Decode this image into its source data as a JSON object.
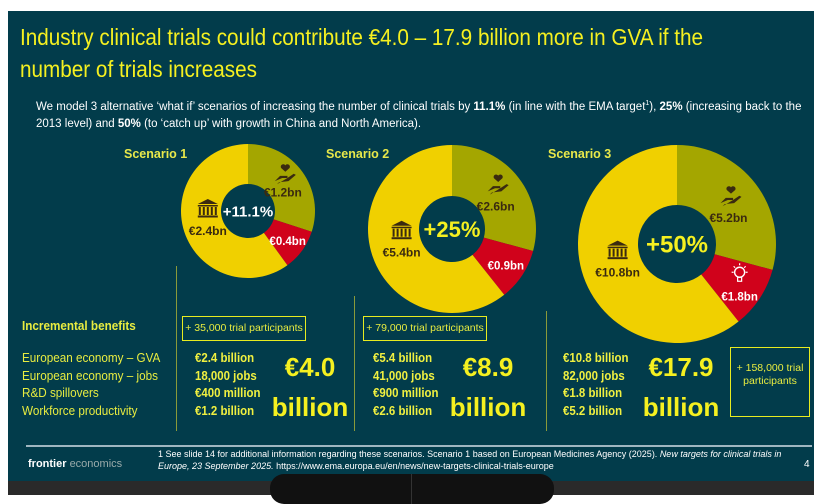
{
  "header": {
    "title": "Industry clinical trials could contribute €4.0 – 17.9 billion more in GVA if the number of trials increases",
    "intro_parts": [
      "We model 3 alternative ‘what if’ scenarios of increasing the number of clinical trials by ",
      "11.1%",
      " (in line with the EMA target",
      "1",
      "), ",
      "25%",
      " (increasing back to the 2013 level) and ",
      "50%",
      " (to ‘catch up’ with growth in China and North America)."
    ]
  },
  "colors": {
    "background": "#023c4b",
    "gva": "#f0d000",
    "workforce": "#a4a600",
    "rnd": "#d0021b",
    "accent": "#f5f020"
  },
  "benefits": {
    "heading": "Incremental benefits",
    "labels": [
      "European economy – GVA",
      "European economy – jobs",
      "R&D spillovers",
      "Workforce productivity"
    ]
  },
  "scenarios": [
    {
      "name": "Scenario 1",
      "center": "+11.1%",
      "participants": "+ 35,000 trial participants",
      "slices": {
        "gva": 2.4,
        "rnd": 0.4,
        "workforce": 1.2
      },
      "slice_labels": {
        "gva": "€2.4bn",
        "rnd": "€0.4bn",
        "workforce": "€1.2bn"
      },
      "values": [
        "€2.4 billion",
        "18,000 jobs",
        "€400 million",
        "€1.2 billion"
      ],
      "total": "€4.0",
      "total_unit": "billion"
    },
    {
      "name": "Scenario 2",
      "center": "+25%",
      "participants": "+ 79,000 trial participants",
      "slices": {
        "gva": 5.4,
        "rnd": 0.9,
        "workforce": 2.6
      },
      "slice_labels": {
        "gva": "€5.4bn",
        "rnd": "€0.9bn",
        "workforce": "€2.6bn"
      },
      "values": [
        "€5.4 billion",
        "41,000 jobs",
        "€900 million",
        "€2.6 billion"
      ],
      "total": "€8.9",
      "total_unit": "billion"
    },
    {
      "name": "Scenario 3",
      "center": "+50%",
      "participants": "+ 158,000 trial participants",
      "slices": {
        "gva": 10.8,
        "rnd": 1.8,
        "workforce": 5.2
      },
      "slice_labels": {
        "gva": "€10.8bn",
        "rnd": "€1.8bn",
        "workforce": "€5.2bn"
      },
      "values": [
        "€10.8 billion",
        "82,000 jobs",
        "€1.8 billion",
        "€5.2 billion"
      ],
      "total": "€17.9",
      "total_unit": "billion"
    }
  ],
  "footer": {
    "logo_bold": "frontier",
    "logo_light": "economics",
    "note": "1  See slide 14 for additional information regarding these scenarios. Scenario 1 based on European Medicines Agency (2025). ",
    "note_italic": "New targets for clinical trials in Europe, 23 September 2025.",
    "note_url": "  https://www.ema.europa.eu/en/news/new-targets-clinical-trials-europe",
    "page": "4"
  }
}
